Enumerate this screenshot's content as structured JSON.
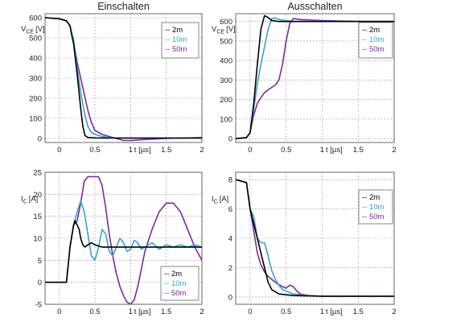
{
  "colors": {
    "2m": "#000000",
    "10m": "#3aa3c4",
    "50m": "#7b2a9e"
  },
  "chart_data": [
    {
      "type": "line",
      "title": "Einschalten",
      "xlabel_prefix": "t ",
      "xlabel": "[µs]",
      "ylabel_main": "V",
      "ylabel_sub": "CE",
      "ylabel_unit": "[V]",
      "xlim": [
        -0.2,
        2
      ],
      "ylim": [
        -20,
        620
      ],
      "xticks": [
        0,
        0.5,
        1,
        1.5,
        2
      ],
      "xtick_labels": [
        "0",
        "0.5",
        "1",
        "1.5",
        "2"
      ],
      "yticks": [
        0,
        100,
        200,
        300,
        400,
        500,
        600
      ],
      "ytick_labels": [
        "0",
        "100",
        "200",
        "300",
        "400",
        "500",
        "600"
      ],
      "legend": "top-right",
      "series": [
        {
          "name": "-- 2m",
          "color": "#000000",
          "x": [
            -0.2,
            0,
            0.1,
            0.15,
            0.17,
            0.2,
            0.25,
            0.3,
            0.33,
            0.36,
            0.4,
            0.5,
            0.7,
            1.0,
            1.5,
            2.0
          ],
          "y": [
            600,
            595,
            585,
            560,
            520,
            470,
            320,
            150,
            60,
            15,
            5,
            3,
            2,
            2,
            2,
            2
          ]
        },
        {
          "name": "-- 10m",
          "color": "#3aa3c4",
          "x": [
            -0.2,
            0,
            0.1,
            0.15,
            0.2,
            0.25,
            0.3,
            0.35,
            0.4,
            0.45,
            0.5,
            0.6,
            0.7,
            0.8,
            1.0,
            1.5,
            2.0
          ],
          "y": [
            600,
            595,
            585,
            560,
            490,
            350,
            230,
            130,
            60,
            30,
            20,
            10,
            5,
            3,
            2,
            2,
            2
          ]
        },
        {
          "name": "-- 50m",
          "color": "#7b2a9e",
          "x": [
            -0.2,
            0,
            0.1,
            0.15,
            0.2,
            0.25,
            0.3,
            0.35,
            0.4,
            0.45,
            0.5,
            0.6,
            0.7,
            0.8,
            0.9,
            1.0,
            1.2,
            1.5,
            2.0
          ],
          "y": [
            600,
            595,
            585,
            560,
            480,
            380,
            300,
            220,
            140,
            80,
            40,
            20,
            10,
            0,
            -10,
            -10,
            -5,
            0,
            5
          ]
        }
      ]
    },
    {
      "type": "line",
      "title": "Ausschalten",
      "xlabel_prefix": "t ",
      "xlabel": "[µs]",
      "ylabel_main": "V",
      "ylabel_sub": "CE",
      "ylabel_unit": "[V]",
      "xlim": [
        -0.2,
        2
      ],
      "ylim": [
        -20,
        640
      ],
      "xticks": [
        0,
        0.5,
        1,
        1.5,
        2
      ],
      "xtick_labels": [
        "0",
        "0.5",
        "1",
        "1.5",
        "2"
      ],
      "yticks": [
        0,
        100,
        200,
        300,
        400,
        500,
        600
      ],
      "ytick_labels": [
        "0",
        "100",
        "200",
        "300",
        "400",
        "500",
        "600"
      ],
      "legend": "top-right",
      "series": [
        {
          "name": "-- 2m",
          "color": "#000000",
          "x": [
            -0.2,
            -0.05,
            0,
            0.05,
            0.1,
            0.15,
            0.2,
            0.25,
            0.3,
            0.4,
            0.6,
            1.0,
            1.5,
            2.0
          ],
          "y": [
            0,
            5,
            30,
            180,
            380,
            560,
            630,
            620,
            605,
            600,
            600,
            600,
            600,
            600
          ]
        },
        {
          "name": "-- 10m",
          "color": "#3aa3c4",
          "x": [
            -0.2,
            -0.05,
            0,
            0.05,
            0.1,
            0.15,
            0.2,
            0.25,
            0.3,
            0.35,
            0.4,
            0.6,
            1.0,
            1.5,
            2.0
          ],
          "y": [
            0,
            5,
            30,
            150,
            280,
            380,
            470,
            560,
            615,
            618,
            610,
            600,
            600,
            600,
            600
          ]
        },
        {
          "name": "-- 50m",
          "color": "#7b2a9e",
          "x": [
            -0.2,
            -0.05,
            0,
            0.05,
            0.1,
            0.15,
            0.2,
            0.25,
            0.3,
            0.35,
            0.4,
            0.45,
            0.5,
            0.55,
            0.6,
            0.7,
            1.0,
            1.5,
            2.0
          ],
          "y": [
            0,
            5,
            30,
            120,
            180,
            210,
            235,
            250,
            262,
            275,
            300,
            380,
            500,
            590,
            615,
            610,
            605,
            600,
            600
          ]
        }
      ]
    },
    {
      "type": "line",
      "title": "",
      "xlabel_prefix": "t ",
      "xlabel": "[µs]",
      "ylabel_main": "I",
      "ylabel_sub": "C",
      "ylabel_unit": "[A]",
      "xlim": [
        -0.2,
        2
      ],
      "ylim": [
        -5,
        25
      ],
      "xticks": [
        0,
        0.5,
        1,
        1.5,
        2
      ],
      "xtick_labels": [
        "0",
        "0.5",
        "1",
        "1.5",
        "2"
      ],
      "yticks": [
        -5,
        0,
        5,
        10,
        15,
        20,
        25
      ],
      "ytick_labels": [
        "-5",
        "0",
        "5",
        "10",
        "15",
        "20",
        "25"
      ],
      "legend": "bottom-right",
      "series": [
        {
          "name": "-- 2m",
          "color": "#000000",
          "x": [
            -0.2,
            0,
            0.1,
            0.15,
            0.2,
            0.22,
            0.25,
            0.28,
            0.3,
            0.33,
            0.36,
            0.4,
            0.45,
            0.5,
            0.6,
            0.7,
            0.8,
            1.0,
            1.2,
            1.5,
            1.8,
            2.0
          ],
          "y": [
            0,
            0,
            0,
            8,
            13,
            14,
            13,
            12,
            10,
            8.5,
            8,
            8.5,
            9,
            8.5,
            8,
            8,
            8,
            8,
            8,
            8,
            8,
            8
          ]
        },
        {
          "name": "-- 10m",
          "color": "#3aa3c4",
          "x": [
            -0.2,
            0,
            0.1,
            0.15,
            0.2,
            0.25,
            0.3,
            0.35,
            0.4,
            0.45,
            0.5,
            0.55,
            0.6,
            0.65,
            0.7,
            0.75,
            0.8,
            0.85,
            0.9,
            0.95,
            1.0,
            1.05,
            1.1,
            1.15,
            1.2,
            1.3,
            1.4,
            1.5,
            1.6,
            1.7,
            1.8,
            1.9,
            2.0
          ],
          "y": [
            0,
            0,
            0,
            8,
            13,
            16,
            18.5,
            16,
            11,
            6,
            5,
            8,
            12,
            11,
            7,
            6,
            8,
            10,
            9,
            7,
            7.5,
            9.5,
            9,
            7.5,
            8,
            9,
            7.5,
            8.5,
            8,
            8.5,
            8,
            8.5,
            8
          ]
        },
        {
          "name": "-- 50m",
          "color": "#7b2a9e",
          "x": [
            -0.2,
            0,
            0.1,
            0.15,
            0.2,
            0.25,
            0.3,
            0.35,
            0.4,
            0.45,
            0.5,
            0.55,
            0.6,
            0.65,
            0.7,
            0.75,
            0.8,
            0.85,
            0.9,
            0.95,
            1.0,
            1.05,
            1.1,
            1.15,
            1.2,
            1.3,
            1.4,
            1.5,
            1.6,
            1.7,
            1.8,
            1.9,
            2.0
          ],
          "y": [
            0,
            0,
            0,
            8,
            13,
            14,
            18,
            23,
            24,
            24,
            24,
            24,
            22,
            17,
            11,
            6,
            2,
            -1,
            -3,
            -4.5,
            -5,
            -4,
            -1,
            3,
            7,
            12,
            16,
            18,
            18,
            16,
            12,
            8,
            5
          ]
        }
      ]
    },
    {
      "type": "line",
      "title": "",
      "xlabel_prefix": "t ",
      "xlabel": "[µs]",
      "ylabel_main": "I",
      "ylabel_sub": "C",
      "ylabel_unit": "[A]",
      "xlim": [
        -0.2,
        2
      ],
      "ylim": [
        -0.5,
        8.5
      ],
      "xticks": [
        0,
        0.5,
        1,
        1.5,
        2
      ],
      "xtick_labels": [
        "0",
        "0.5",
        "1",
        "1.5",
        "2"
      ],
      "yticks": [
        0,
        2,
        4,
        6,
        8
      ],
      "ytick_labels": [
        "0",
        "2",
        "4",
        "6",
        "8"
      ],
      "legend": "top-right",
      "series": [
        {
          "name": "-- 2m",
          "color": "#000000",
          "x": [
            -0.2,
            -0.05,
            0,
            0.05,
            0.1,
            0.15,
            0.2,
            0.25,
            0.3,
            0.4,
            0.6,
            1.0,
            1.5,
            2.0
          ],
          "y": [
            8,
            7.8,
            6,
            5,
            4,
            3,
            2,
            1,
            0.5,
            0.2,
            0.1,
            0.05,
            0.05,
            0.05
          ]
        },
        {
          "name": "-- 10m",
          "color": "#3aa3c4",
          "x": [
            -0.2,
            -0.05,
            0,
            0.05,
            0.1,
            0.15,
            0.2,
            0.25,
            0.3,
            0.35,
            0.4,
            0.45,
            0.5,
            0.6,
            0.8,
            1.0,
            1.5,
            2.0
          ],
          "y": [
            8,
            7.8,
            6,
            5.5,
            4,
            3.7,
            3.7,
            2.8,
            1.8,
            1.2,
            0.8,
            0.5,
            0.4,
            0.2,
            0.1,
            0.05,
            0.05,
            0.05
          ]
        },
        {
          "name": "-- 50m",
          "color": "#7b2a9e",
          "x": [
            -0.2,
            -0.05,
            0,
            0.05,
            0.1,
            0.15,
            0.2,
            0.25,
            0.3,
            0.35,
            0.4,
            0.45,
            0.5,
            0.55,
            0.6,
            0.65,
            0.7,
            0.8,
            1.0,
            1.5,
            2.0
          ],
          "y": [
            8,
            7.8,
            6,
            4.5,
            3,
            2.2,
            1.7,
            1.4,
            1.2,
            1.0,
            0.85,
            0.7,
            0.6,
            0.8,
            0.7,
            0.4,
            0.2,
            0.1,
            0.05,
            0.05,
            0.05
          ]
        }
      ]
    }
  ]
}
